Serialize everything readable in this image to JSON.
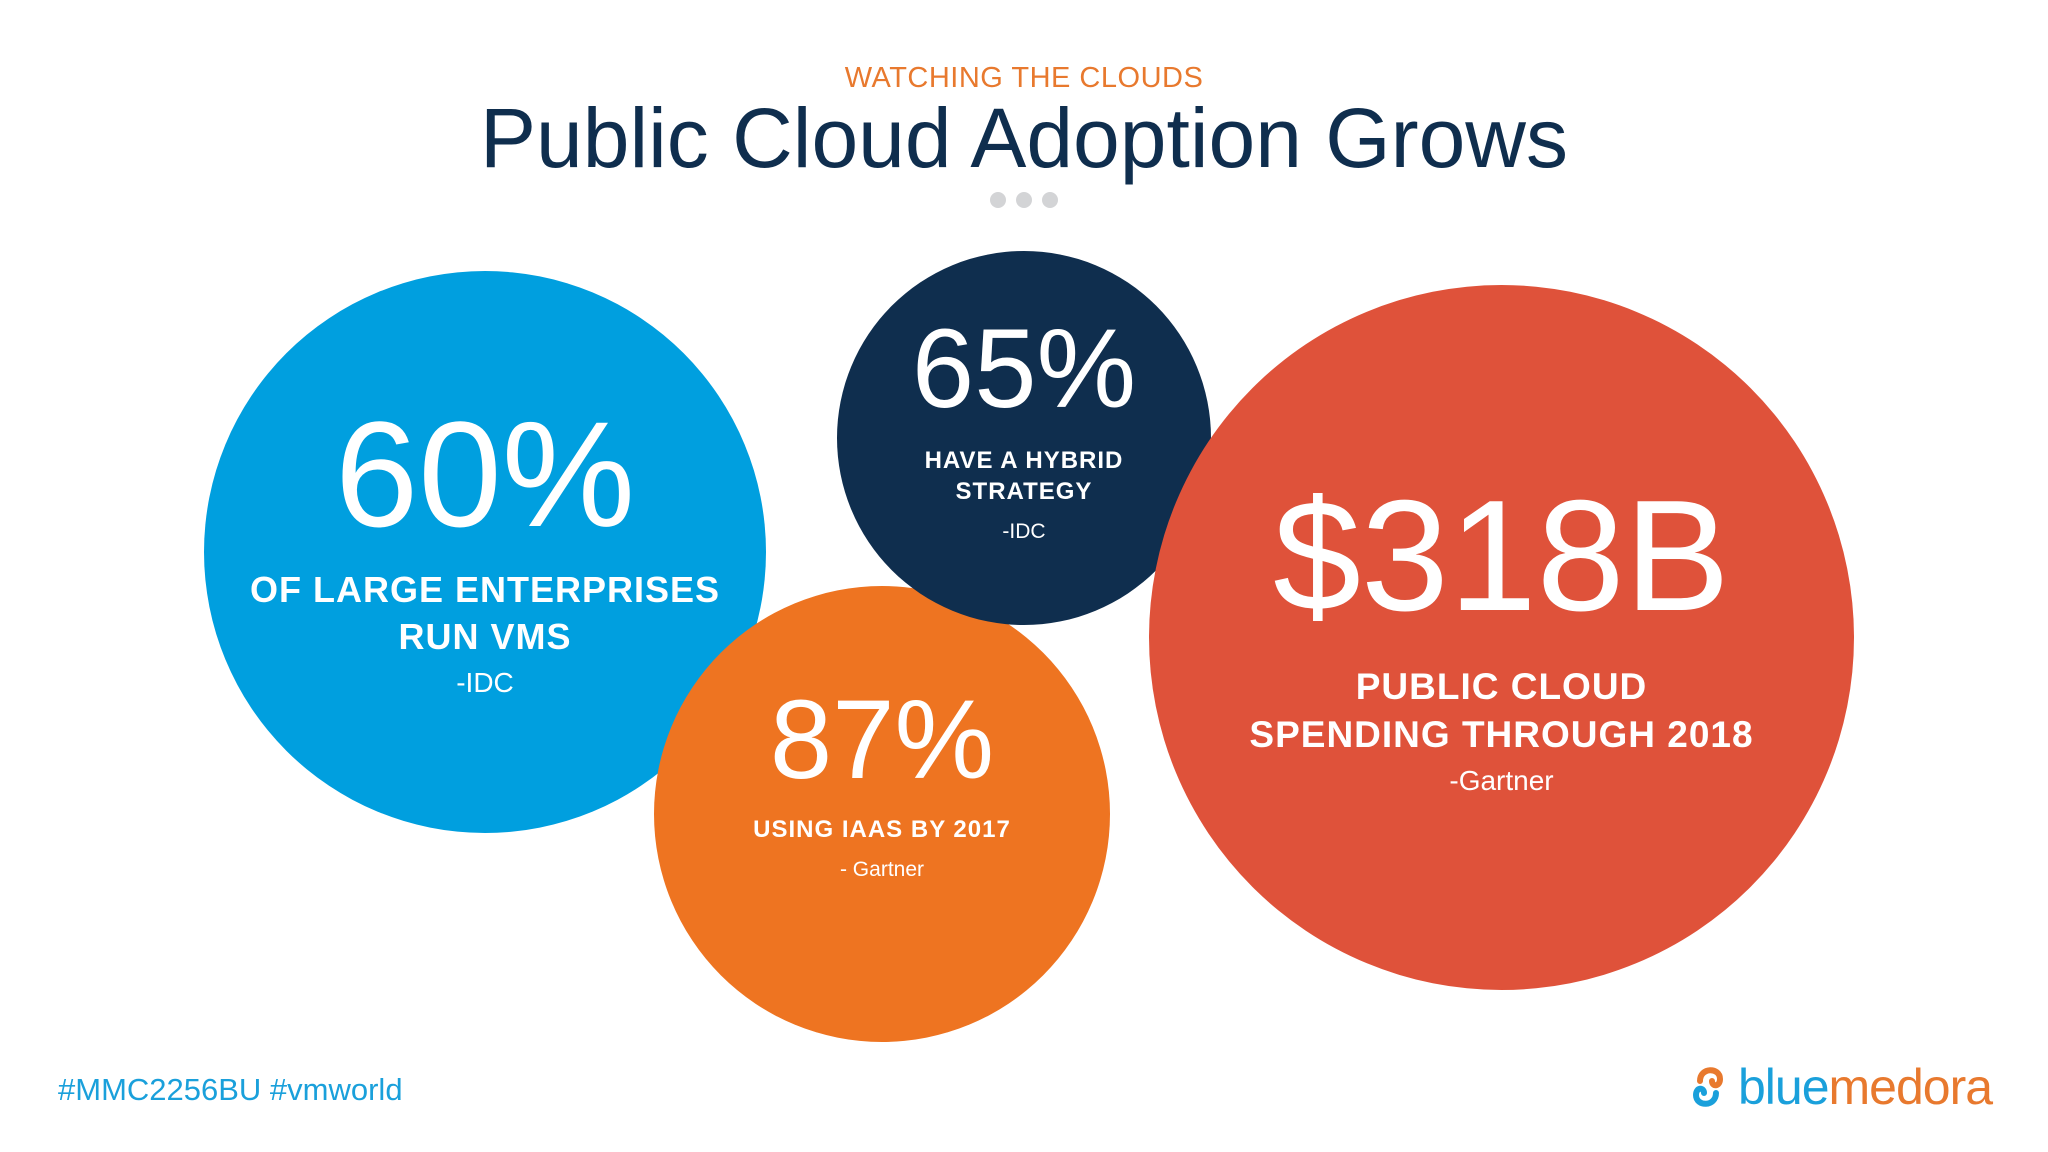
{
  "header": {
    "kicker": "WATCHING THE CLOUDS",
    "title": "Public Cloud Adoption Grows"
  },
  "stats": [
    {
      "id": "large",
      "value": "60%",
      "line1": "OF LARGE ENTERPRISES",
      "line2": "RUN VMS",
      "source": "-IDC",
      "color": "#009fdf"
    },
    {
      "id": "hybrid",
      "value": "65%",
      "line1": "HAVE A HYBRID",
      "line2": "STRATEGY",
      "source": "-IDC",
      "color": "#0f2e4e"
    },
    {
      "id": "iaas",
      "value": "87%",
      "line1": "USING IAAS BY 2017",
      "source": "- Gartner",
      "color": "#ee7421"
    },
    {
      "id": "spend",
      "value": "$318B",
      "line1": "PUBLIC CLOUD",
      "line2": "SPENDING THROUGH 2018",
      "source": "-Gartner",
      "color": "#df523a"
    }
  ],
  "footer": {
    "hashtags": "#MMC2256BU #vmworld",
    "logo_part1": "blue",
    "logo_part2": "medora",
    "logo_icon": "bluemedora-logo-icon"
  },
  "colors": {
    "kicker": "#e8792e",
    "title": "#0f2e4e",
    "hashtag": "#1aa0db",
    "logo_blue": "#1aa0db",
    "logo_orange": "#e8792e"
  }
}
